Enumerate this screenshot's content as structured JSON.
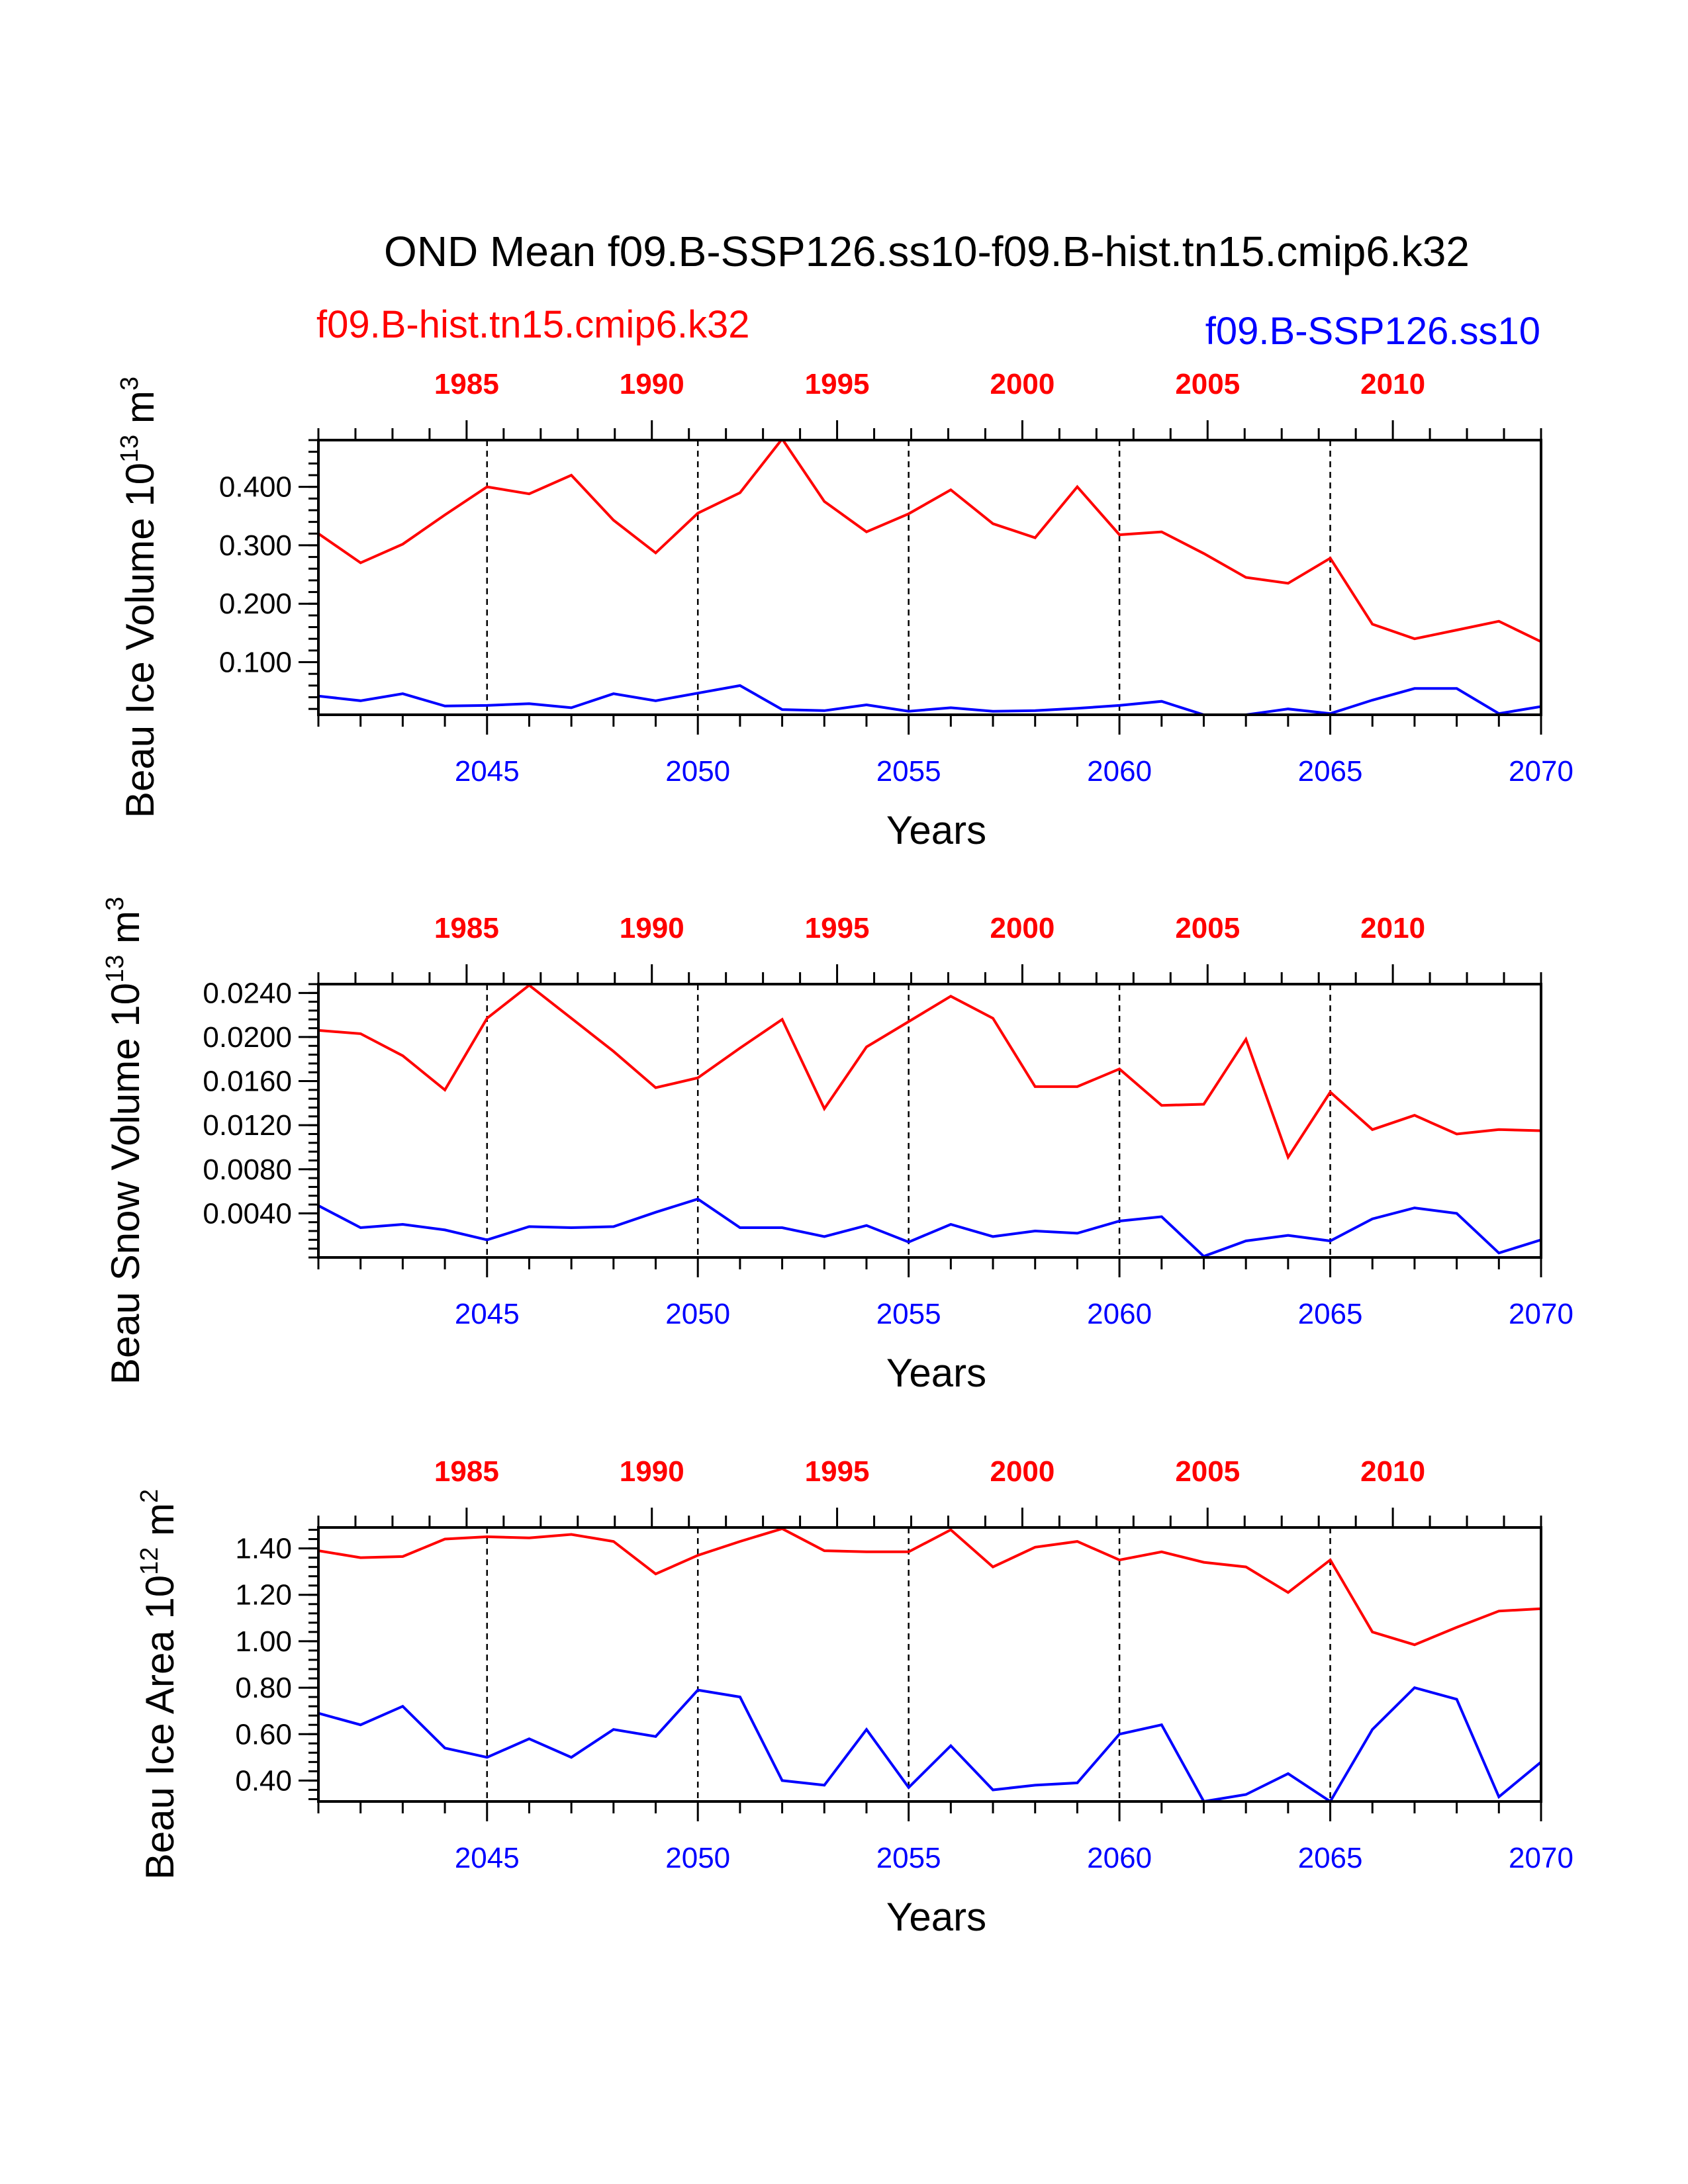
{
  "title": "OND Mean f09.B-SSP126.ss10-f09.B-hist.tn15.cmip6.k32",
  "legend": {
    "hist_label": "f09.B-hist.tn15.cmip6.k32",
    "ssp_label": "f09.B-SSP126.ss10",
    "hist_color": "#ff0000",
    "ssp_color": "#0000ff"
  },
  "chart_data": [
    {
      "type": "line",
      "ylabel": "Beau Ice Volume 10",
      "ylabel_exp": "13",
      "ylabel_unit": " m",
      "ylabel_unit_exp": "3",
      "xlabel": "Years",
      "ylim": [
        0.01,
        0.48
      ],
      "yticks": [
        0.1,
        0.2,
        0.3,
        0.4
      ],
      "ytick_labels": [
        "0.100",
        "0.200",
        "0.300",
        "0.400"
      ],
      "top_axis": {
        "range": [
          1981,
          2014
        ],
        "ticks": [
          1985,
          1990,
          1995,
          2000,
          2005,
          2010
        ],
        "labels": [
          "1985",
          "1990",
          "1995",
          "2000",
          "2005",
          "2010"
        ]
      },
      "bottom_axis": {
        "range": [
          2041,
          2070
        ],
        "ticks": [
          2045,
          2050,
          2055,
          2060,
          2065,
          2070
        ],
        "labels": [
          "2045",
          "2050",
          "2055",
          "2060",
          "2065",
          "2070"
        ]
      },
      "series": [
        {
          "name": "f09.B-hist.tn15.cmip6.k32",
          "x": [
            2041,
            2042,
            2043,
            2044,
            2045,
            2046,
            2047,
            2048,
            2049,
            2050,
            2051,
            2052,
            2053,
            2054,
            2055,
            2056,
            2057,
            2058,
            2059,
            2060,
            2061,
            2062,
            2063,
            2064,
            2065,
            2066,
            2067,
            2068,
            2069,
            2070
          ],
          "values": [
            0.32,
            0.27,
            0.302,
            0.352,
            0.4,
            0.388,
            0.42,
            0.343,
            0.287,
            0.355,
            0.39,
            0.482,
            0.375,
            0.323,
            0.354,
            0.395,
            0.337,
            0.313,
            0.4,
            0.318,
            0.323,
            0.286,
            0.245,
            0.235,
            0.278,
            0.165,
            0.14,
            0.155,
            0.17,
            0.135
          ]
        },
        {
          "name": "f09.B-SSP126.ss10",
          "x": [
            2041,
            2042,
            2043,
            2044,
            2045,
            2046,
            2047,
            2048,
            2049,
            2050,
            2051,
            2052,
            2053,
            2054,
            2055,
            2056,
            2057,
            2058,
            2059,
            2060,
            2061,
            2062,
            2063,
            2064,
            2065,
            2066,
            2067,
            2068,
            2069,
            2070
          ],
          "values": [
            0.042,
            0.034,
            0.046,
            0.025,
            0.026,
            0.029,
            0.022,
            0.046,
            0.034,
            0.047,
            0.06,
            0.019,
            0.017,
            0.027,
            0.016,
            0.022,
            0.016,
            0.017,
            0.021,
            0.026,
            0.033,
            0.01,
            0.01,
            0.02,
            0.012,
            0.035,
            0.055,
            0.055,
            0.012,
            0.024
          ]
        }
      ]
    },
    {
      "type": "line",
      "ylabel": "Beau Snow Volume 10",
      "ylabel_exp": "13",
      "ylabel_unit": " m",
      "ylabel_unit_exp": "3",
      "xlabel": "Years",
      "ylim": [
        0.0,
        0.0248
      ],
      "yticks": [
        0.004,
        0.008,
        0.012,
        0.016,
        0.02,
        0.024
      ],
      "ytick_labels": [
        "0.0040",
        "0.0080",
        "0.0120",
        "0.0160",
        "0.0200",
        "0.0240"
      ],
      "top_axis": {
        "range": [
          1981,
          2014
        ],
        "ticks": [
          1985,
          1990,
          1995,
          2000,
          2005,
          2010
        ],
        "labels": [
          "1985",
          "1990",
          "1995",
          "2000",
          "2005",
          "2010"
        ]
      },
      "bottom_axis": {
        "range": [
          2041,
          2070
        ],
        "ticks": [
          2045,
          2050,
          2055,
          2060,
          2065,
          2070
        ],
        "labels": [
          "2045",
          "2050",
          "2055",
          "2060",
          "2065",
          "2070"
        ]
      },
      "series": [
        {
          "name": "f09.B-hist.tn15.cmip6.k32",
          "x": [
            2041,
            2042,
            2043,
            2044,
            2045,
            2046,
            2047,
            2048,
            2049,
            2050,
            2051,
            2052,
            2053,
            2054,
            2055,
            2056,
            2057,
            2058,
            2059,
            2060,
            2061,
            2062,
            2063,
            2064,
            2065,
            2066,
            2067,
            2068,
            2069,
            2070
          ],
          "values": [
            0.0206,
            0.0203,
            0.0183,
            0.0152,
            0.0217,
            0.0247,
            0.0217,
            0.0187,
            0.0154,
            0.0163,
            0.019,
            0.0216,
            0.0135,
            0.0191,
            0.0214,
            0.0237,
            0.0217,
            0.0155,
            0.0155,
            0.0171,
            0.0138,
            0.0139,
            0.0198,
            0.0091,
            0.015,
            0.0116,
            0.0129,
            0.0112,
            0.0116,
            0.0115
          ]
        },
        {
          "name": "f09.B-SSP126.ss10",
          "x": [
            2041,
            2042,
            2043,
            2044,
            2045,
            2046,
            2047,
            2048,
            2049,
            2050,
            2051,
            2052,
            2053,
            2054,
            2055,
            2056,
            2057,
            2058,
            2059,
            2060,
            2061,
            2062,
            2063,
            2064,
            2065,
            2066,
            2067,
            2068,
            2069,
            2070
          ],
          "values": [
            0.0047,
            0.0027,
            0.003,
            0.0025,
            0.0016,
            0.0028,
            0.0027,
            0.0028,
            0.0041,
            0.0053,
            0.0027,
            0.0027,
            0.0019,
            0.0029,
            0.0014,
            0.003,
            0.0019,
            0.0024,
            0.0022,
            0.0033,
            0.0037,
            0.0001,
            0.0015,
            0.002,
            0.0015,
            0.0035,
            0.0045,
            0.004,
            0.0004,
            0.0016
          ]
        }
      ]
    },
    {
      "type": "line",
      "ylabel": "Beau Ice Area 10",
      "ylabel_exp": "12",
      "ylabel_unit": " m",
      "ylabel_unit_exp": "2",
      "xlabel": "Years",
      "ylim": [
        0.31,
        1.49
      ],
      "yticks": [
        0.4,
        0.6,
        0.8,
        1.0,
        1.2,
        1.4
      ],
      "ytick_labels": [
        "0.40",
        "0.60",
        "0.80",
        "1.00",
        "1.20",
        "1.40"
      ],
      "top_axis": {
        "range": [
          1981,
          2014
        ],
        "ticks": [
          1985,
          1990,
          1995,
          2000,
          2005,
          2010
        ],
        "labels": [
          "1985",
          "1990",
          "1995",
          "2000",
          "2005",
          "2010"
        ]
      },
      "bottom_axis": {
        "range": [
          2041,
          2070
        ],
        "ticks": [
          2045,
          2050,
          2055,
          2060,
          2065,
          2070
        ],
        "labels": [
          "2045",
          "2050",
          "2055",
          "2060",
          "2065",
          "2070"
        ]
      },
      "series": [
        {
          "name": "f09.B-hist.tn15.cmip6.k32",
          "x": [
            2041,
            2042,
            2043,
            2044,
            2045,
            2046,
            2047,
            2048,
            2049,
            2050,
            2051,
            2052,
            2053,
            2054,
            2055,
            2056,
            2057,
            2058,
            2059,
            2060,
            2061,
            2062,
            2063,
            2064,
            2065,
            2066,
            2067,
            2068,
            2069,
            2070
          ],
          "values": [
            1.39,
            1.36,
            1.365,
            1.44,
            1.45,
            1.445,
            1.46,
            1.43,
            1.29,
            1.37,
            1.43,
            1.485,
            1.39,
            1.385,
            1.385,
            1.48,
            1.32,
            1.405,
            1.43,
            1.35,
            1.385,
            1.34,
            1.32,
            1.21,
            1.35,
            1.04,
            0.985,
            1.06,
            1.13,
            1.14
          ]
        },
        {
          "name": "f09.B-SSP126.ss10",
          "x": [
            2041,
            2042,
            2043,
            2044,
            2045,
            2046,
            2047,
            2048,
            2049,
            2050,
            2051,
            2052,
            2053,
            2054,
            2055,
            2056,
            2057,
            2058,
            2059,
            2060,
            2061,
            2062,
            2063,
            2064,
            2065,
            2066,
            2067,
            2068,
            2069,
            2070
          ],
          "values": [
            0.69,
            0.64,
            0.72,
            0.54,
            0.5,
            0.58,
            0.5,
            0.62,
            0.59,
            0.79,
            0.76,
            0.4,
            0.38,
            0.62,
            0.37,
            0.55,
            0.36,
            0.38,
            0.39,
            0.6,
            0.64,
            0.31,
            0.34,
            0.43,
            0.31,
            0.62,
            0.8,
            0.75,
            0.33,
            0.48
          ]
        }
      ]
    }
  ]
}
